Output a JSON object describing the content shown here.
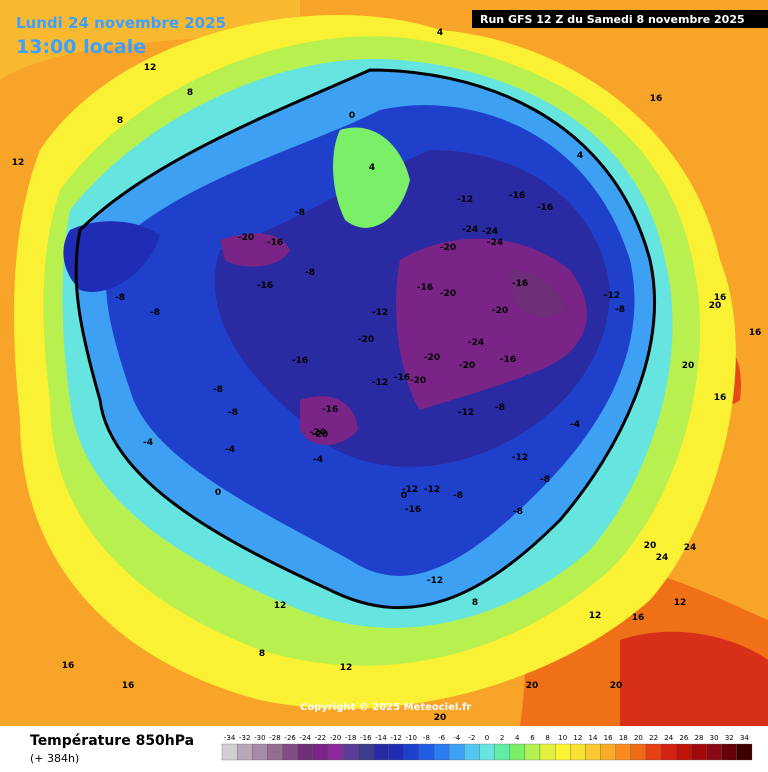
{
  "header": {
    "date_line": "Lundi 24 novembre 2025",
    "time_line": "13:00 locale",
    "run": "Run GFS 12 Z du Samedi 8 novembre 2025"
  },
  "copyright": "Copyright © 2025 Meteociel.fr",
  "footer": {
    "title": "Température 850hPa",
    "subtitle": "(+ 384h)"
  },
  "legend": {
    "ticks": [
      -34,
      -32,
      -30,
      -28,
      -26,
      -24,
      -22,
      -20,
      -18,
      -16,
      -14,
      -12,
      -10,
      -8,
      -6,
      -4,
      -2,
      0,
      2,
      4,
      6,
      8,
      10,
      12,
      14,
      16,
      18,
      20,
      22,
      24,
      26,
      28,
      30,
      32,
      34
    ],
    "colors": [
      "#d0d0d0",
      "#b8a8b8",
      "#a88aa8",
      "#946c94",
      "#804c84",
      "#6e2e78",
      "#7a2488",
      "#8a2c9c",
      "#5c3c98",
      "#3e3a8e",
      "#2a2aa2",
      "#1e2cb6",
      "#1e40ca",
      "#205ce6",
      "#2a7af0",
      "#3ea0f2",
      "#52c8f0",
      "#66e4e0",
      "#62eca4",
      "#7af068",
      "#b2f050",
      "#e2f03e",
      "#faf434",
      "#fae232",
      "#fac832",
      "#faac28",
      "#f88c1e",
      "#f06a16",
      "#e64014",
      "#d42214",
      "#be140a",
      "#a20a0a",
      "#8a0a14",
      "#66000a",
      "#3c0000"
    ]
  },
  "map": {
    "contour_labels": [
      -12,
      -16,
      -16,
      -24,
      -24,
      -20,
      -24,
      -20,
      -20,
      -20,
      -24,
      -16,
      -12,
      -16,
      -20,
      -16,
      -20,
      -20,
      -16,
      -12,
      -8,
      -8,
      -16,
      -12,
      -12,
      -8,
      -12,
      -8,
      -12,
      -16,
      -20,
      -16,
      -8,
      -4,
      -8,
      -8,
      -4,
      -8,
      -4,
      0,
      0,
      4,
      4,
      4,
      8,
      8,
      12,
      12,
      16,
      16,
      16,
      20,
      20,
      24,
      20,
      24,
      16,
      12,
      8,
      8,
      12,
      12,
      16,
      16,
      20,
      20,
      20,
      16,
      12,
      -20,
      -20,
      -16,
      -16,
      -8,
      -4,
      0,
      -8,
      -12,
      -12,
      -8
    ]
  }
}
